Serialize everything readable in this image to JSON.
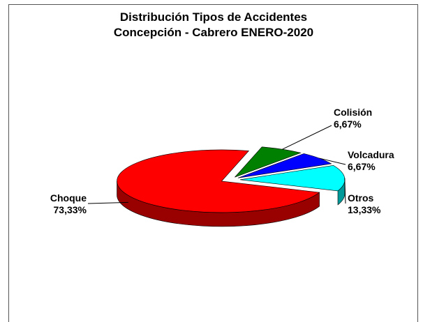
{
  "chart_data": {
    "type": "pie",
    "title": "Distribución Tipos de Accidentes",
    "subtitle": "Concepción - Cabrero ENERO-2020",
    "categories": [
      "Colisión",
      "Volcadura",
      "Otros",
      "Choque"
    ],
    "values": [
      6.67,
      6.67,
      13.33,
      73.33
    ],
    "value_labels": [
      "6,67%",
      "6,67%",
      "13,33%",
      "73,33%"
    ],
    "colors": [
      "#008000",
      "#0000ff",
      "#00ffff",
      "#ff0000"
    ]
  }
}
